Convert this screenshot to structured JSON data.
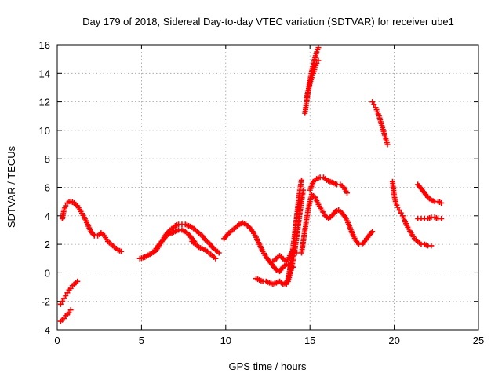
{
  "chart_data": {
    "type": "scatter",
    "title": "Day 179 of 2018, Sidereal Day-to-day VTEC variation (SDTVAR) for receiver ube1",
    "xlabel": "GPS time / hours",
    "ylabel": "SDTVAR / TECUs",
    "xlim": [
      0,
      25
    ],
    "ylim": [
      -4,
      16
    ],
    "xticks": [
      0,
      5,
      10,
      15,
      20,
      25
    ],
    "yticks": [
      -4,
      -2,
      0,
      2,
      4,
      6,
      8,
      10,
      12,
      14,
      16
    ],
    "grid": true,
    "marker": "+",
    "color": "#ff0000",
    "series": [
      {
        "x": [
          0.3,
          0.4,
          0.5,
          0.6,
          0.7,
          0.8,
          1.0,
          1.2,
          1.4,
          1.6,
          1.8,
          2.0,
          2.2,
          2.4,
          2.6,
          2.8,
          3.0,
          3.2,
          3.4,
          3.6,
          3.8
        ],
        "y": [
          3.8,
          4.4,
          4.7,
          4.9,
          5.0,
          5.0,
          4.9,
          4.7,
          4.3,
          3.9,
          3.4,
          2.9,
          2.6,
          2.6,
          2.8,
          2.6,
          2.2,
          2.0,
          1.8,
          1.6,
          1.5
        ]
      },
      {
        "x": [
          0.2,
          0.3,
          0.4,
          0.5,
          0.6,
          0.7,
          0.8,
          0.9,
          1.0,
          1.1,
          1.2
        ],
        "y": [
          -2.2,
          -2.0,
          -1.8,
          -1.6,
          -1.4,
          -1.2,
          -1.1,
          -0.9,
          -0.8,
          -0.7,
          -0.6
        ]
      },
      {
        "x": [
          0.2,
          0.3,
          0.4,
          0.5,
          0.6,
          0.7,
          0.8
        ],
        "y": [
          -3.4,
          -3.3,
          -3.2,
          -3.0,
          -2.9,
          -2.8,
          -2.6
        ]
      },
      {
        "x": [
          4.9,
          5.2,
          5.5,
          5.8,
          6.0,
          6.2,
          6.4,
          6.6,
          6.8,
          7.0,
          7.2,
          7.4,
          7.6,
          7.8,
          8.0,
          8.2,
          8.4,
          8.6,
          8.8,
          9.0,
          9.2,
          9.4,
          9.6
        ],
        "y": [
          1.0,
          1.1,
          1.3,
          1.5,
          1.8,
          2.2,
          2.6,
          2.9,
          3.1,
          3.3,
          3.4,
          3.4,
          3.4,
          3.3,
          3.2,
          3.0,
          2.8,
          2.6,
          2.3,
          2.1,
          1.8,
          1.6,
          1.4
        ]
      },
      {
        "x": [
          5.8,
          6.0,
          6.2,
          6.4,
          6.6,
          6.8,
          7.0,
          7.2,
          7.4,
          7.6,
          7.8,
          8.0,
          8.2
        ],
        "y": [
          1.6,
          1.9,
          2.2,
          2.5,
          2.7,
          2.8,
          2.9,
          3.0,
          3.0,
          2.9,
          2.7,
          2.4,
          2.1
        ]
      },
      {
        "x": [
          8.0,
          8.2,
          8.4,
          8.6,
          8.8,
          9.0,
          9.2,
          9.4
        ],
        "y": [
          2.2,
          2.0,
          1.8,
          1.7,
          1.6,
          1.4,
          1.2,
          1.0
        ]
      },
      {
        "x": [
          9.9,
          10.2,
          10.5,
          10.8,
          11.0,
          11.2,
          11.4,
          11.6,
          11.8,
          12.0,
          12.2,
          12.4,
          12.6,
          12.8,
          13.0,
          13.2,
          13.4,
          13.6,
          13.8,
          14.0
        ],
        "y": [
          2.4,
          2.8,
          3.1,
          3.4,
          3.5,
          3.4,
          3.2,
          2.9,
          2.5,
          2.0,
          1.5,
          1.1,
          0.8,
          0.5,
          0.2,
          0.1,
          0.4,
          0.6,
          0.5,
          0.4
        ]
      },
      {
        "x": [
          11.8,
          12.0,
          12.2,
          12.4,
          12.6,
          12.8,
          13.0,
          13.2,
          13.4,
          13.6
        ],
        "y": [
          -0.4,
          -0.5,
          -0.6,
          -0.6,
          -0.7,
          -0.8,
          -0.7,
          -0.6,
          -0.8,
          -0.7
        ]
      },
      {
        "x": [
          12.8,
          13.0,
          13.2,
          13.4,
          13.6,
          13.8,
          14.0,
          14.2
        ],
        "y": [
          0.8,
          1.0,
          1.2,
          1.0,
          0.8,
          1.2,
          1.6,
          1.4
        ]
      },
      {
        "x": [
          13.6,
          13.7,
          13.8,
          13.9,
          14.0,
          14.1,
          14.2,
          14.3,
          14.4,
          14.5
        ],
        "y": [
          -0.8,
          -0.4,
          0.2,
          1.0,
          1.8,
          2.8,
          3.8,
          4.8,
          5.8,
          6.5
        ]
      },
      {
        "x": [
          13.7,
          13.8,
          13.9,
          14.0,
          14.1,
          14.2,
          14.3,
          14.4,
          14.5,
          14.6
        ],
        "y": [
          -0.6,
          -0.2,
          0.3,
          0.9,
          1.6,
          2.4,
          3.3,
          4.2,
          5.0,
          5.8
        ]
      },
      {
        "x": [
          14.5,
          14.7,
          14.9,
          15.1,
          15.3,
          15.5,
          15.7,
          15.9,
          16.1,
          16.3,
          16.5,
          16.7,
          16.9,
          17.1,
          17.3,
          17.5,
          17.7,
          17.9,
          18.1,
          18.3,
          18.5,
          18.7
        ],
        "y": [
          1.4,
          3.0,
          4.5,
          5.5,
          5.3,
          4.8,
          4.4,
          4.0,
          3.8,
          4.0,
          4.3,
          4.4,
          4.2,
          3.9,
          3.4,
          2.8,
          2.3,
          2.0,
          2.0,
          2.3,
          2.6,
          2.9
        ]
      },
      {
        "x": [
          15.0,
          15.2,
          15.4,
          15.6,
          15.8,
          16.0,
          16.2,
          16.4,
          16.6,
          16.8,
          17.0,
          17.2
        ],
        "y": [
          5.8,
          6.4,
          6.6,
          6.7,
          6.7,
          6.5,
          6.4,
          6.3,
          6.2,
          6.2,
          6.0,
          5.6
        ]
      },
      {
        "x": [
          14.7,
          14.8,
          14.9,
          15.0,
          15.1,
          15.2,
          15.3,
          15.4,
          15.5
        ],
        "y": [
          11.2,
          12.0,
          12.8,
          13.5,
          14.1,
          14.6,
          15.1,
          15.5,
          15.8
        ]
      },
      {
        "x": [
          14.8,
          14.9,
          15.0,
          15.1,
          15.2,
          15.3,
          15.4,
          15.5
        ],
        "y": [
          12.3,
          12.8,
          13.3,
          13.7,
          14.0,
          14.4,
          14.7,
          14.9
        ]
      },
      {
        "x": [
          18.7,
          18.8,
          18.9,
          19.0,
          19.1,
          19.2,
          19.3,
          19.4,
          19.5,
          19.6
        ],
        "y": [
          12.0,
          11.8,
          11.6,
          11.3,
          11.0,
          10.6,
          10.2,
          9.8,
          9.4,
          9.0
        ]
      },
      {
        "x": [
          19.9,
          20.0,
          20.1,
          20.2,
          20.3,
          20.4,
          20.5,
          20.6,
          20.8,
          21.0,
          21.2,
          21.4,
          21.6,
          21.8,
          22.0,
          22.2
        ],
        "y": [
          6.4,
          5.4,
          4.9,
          4.6,
          4.4,
          4.2,
          4.0,
          3.7,
          3.2,
          2.8,
          2.4,
          2.2,
          2.0,
          2.0,
          1.9,
          1.9
        ]
      },
      {
        "x": [
          21.4,
          21.6,
          21.8,
          22.0,
          22.2,
          22.4,
          22.6,
          22.8
        ],
        "y": [
          6.2,
          5.9,
          5.6,
          5.3,
          5.1,
          5.0,
          5.0,
          4.9
        ]
      },
      {
        "x": [
          21.4,
          21.6,
          21.8,
          22.0,
          22.2,
          22.4,
          22.6,
          22.8
        ],
        "y": [
          3.8,
          3.8,
          3.8,
          3.8,
          3.9,
          3.9,
          3.8,
          3.8
        ]
      }
    ]
  }
}
